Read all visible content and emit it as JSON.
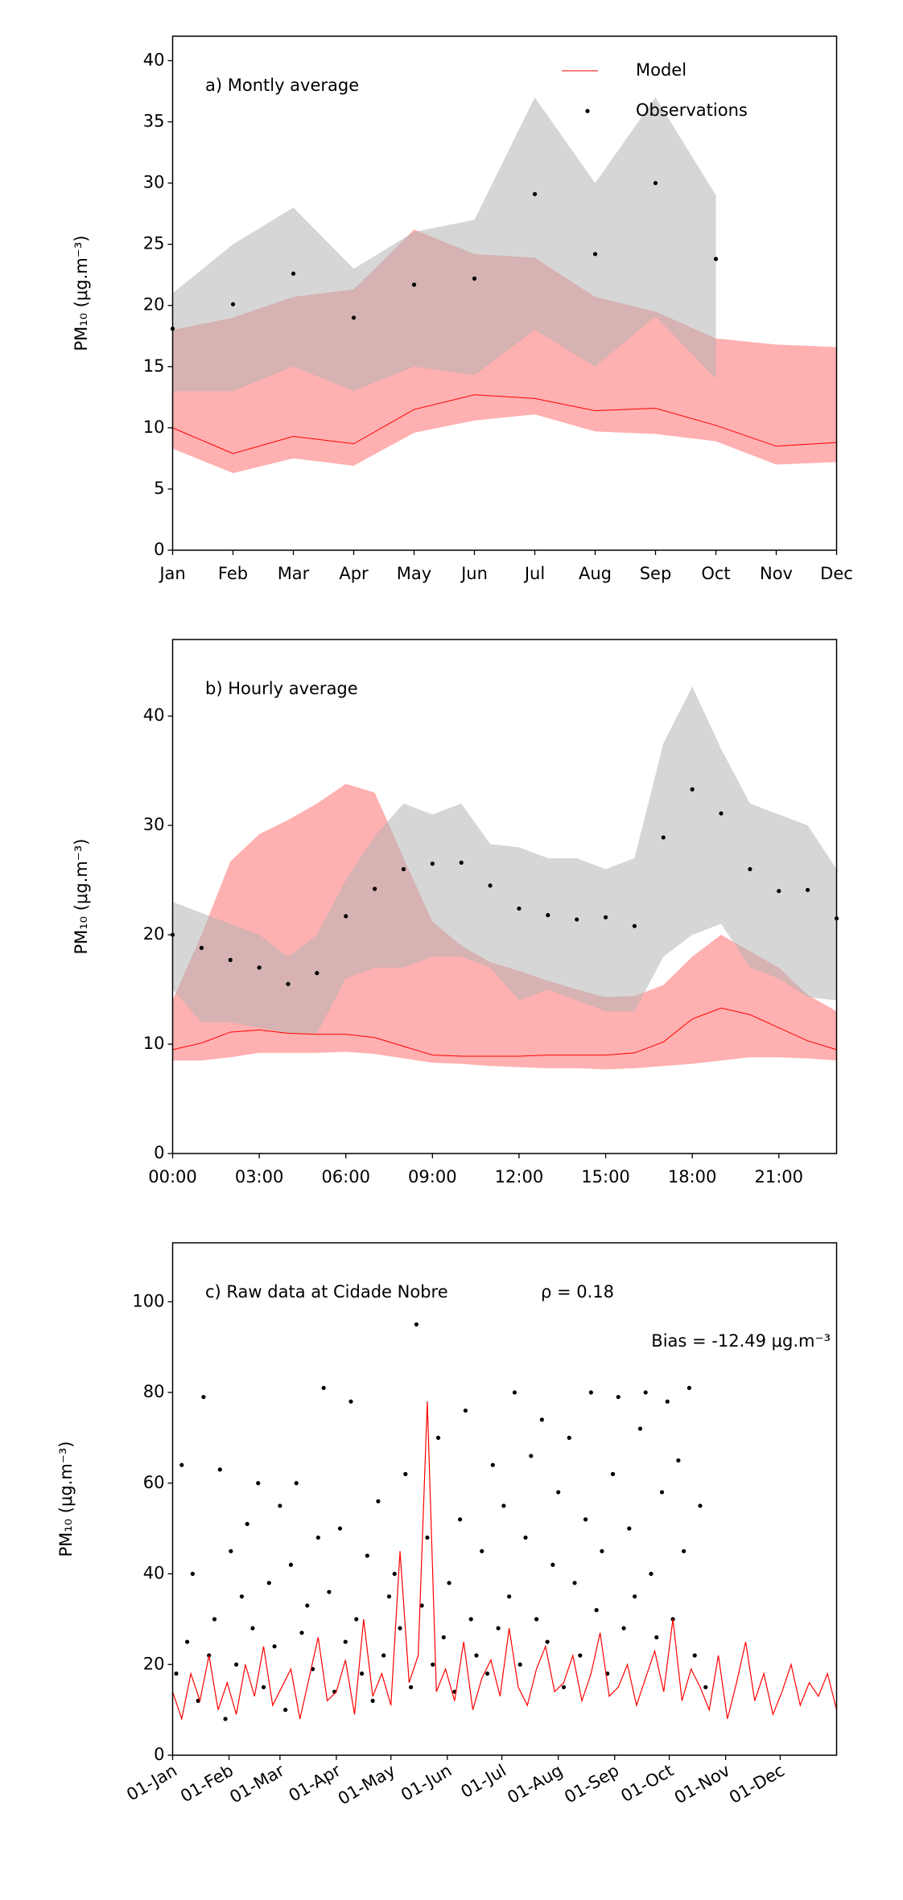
{
  "chart_data": [
    {
      "type": "line",
      "title": "a) Montly average",
      "ylabel": "PM₁₀ (μg.m⁻³)",
      "categories": [
        "Jan",
        "Feb",
        "Mar",
        "Apr",
        "May",
        "Jun",
        "Jul",
        "Aug",
        "Sep",
        "Oct",
        "Nov",
        "Dec"
      ],
      "ylim": [
        0,
        42
      ],
      "yticks": [
        0,
        5,
        10,
        15,
        20,
        25,
        30,
        35,
        40
      ],
      "legend": "upper right",
      "series": [
        {
          "name": "Model",
          "style": "line",
          "color": "#ff0000",
          "band_color": "#ff9c9c",
          "values": [
            10,
            7.9,
            9.3,
            8.7,
            11.5,
            12.7,
            12.4,
            11.4,
            11.6,
            10.2,
            8.5,
            8.8
          ],
          "band_lower": [
            8.3,
            6.3,
            7.5,
            6.9,
            9.6,
            10.6,
            11.1,
            9.7,
            9.5,
            8.9,
            7,
            7.2
          ],
          "band_upper": [
            18,
            19,
            20.7,
            21.3,
            26.2,
            24.2,
            23.9,
            20.7,
            19.5,
            17.3,
            16.8,
            16.6
          ]
        },
        {
          "name": "Observations",
          "style": "dots",
          "color": "#000000",
          "band_color": "#b4b4b4",
          "values": [
            18.1,
            20.1,
            22.6,
            19,
            21.7,
            22.2,
            29.1,
            24.2,
            30,
            23.8,
            null,
            null
          ],
          "band_lower": [
            13,
            13,
            15,
            13,
            15,
            14.3,
            18,
            15,
            19.1,
            14,
            null,
            null
          ],
          "band_upper": [
            21,
            25,
            28,
            23,
            26,
            27,
            37,
            30,
            37,
            29,
            null,
            null
          ]
        }
      ]
    },
    {
      "type": "line",
      "title": "b) Hourly average",
      "ylabel": "PM₁₀ (μg.m⁻³)",
      "x": [
        0,
        1,
        2,
        3,
        4,
        5,
        6,
        7,
        8,
        9,
        10,
        11,
        12,
        13,
        14,
        15,
        16,
        17,
        18,
        19,
        20,
        21,
        22,
        23
      ],
      "xlim": [
        0,
        23
      ],
      "xticks": [
        {
          "value": 0,
          "label": "00:00"
        },
        {
          "value": 3,
          "label": "03:00"
        },
        {
          "value": 6,
          "label": "06:00"
        },
        {
          "value": 9,
          "label": "09:00"
        },
        {
          "value": 12,
          "label": "12:00"
        },
        {
          "value": 15,
          "label": "15:00"
        },
        {
          "value": 18,
          "label": "18:00"
        },
        {
          "value": 21,
          "label": "21:00"
        }
      ],
      "ylim": [
        0,
        47
      ],
      "yticks": [
        0,
        10,
        20,
        30,
        40
      ],
      "series": [
        {
          "name": "Model",
          "style": "line",
          "color": "#ff0000",
          "band_color": "#ff9c9c",
          "values": [
            9.5,
            10.1,
            11.1,
            11.3,
            11,
            10.9,
            10.9,
            10.6,
            9.8,
            9,
            8.9,
            8.9,
            8.9,
            9,
            9,
            9,
            9.2,
            10.2,
            12.3,
            13.3,
            12.7,
            11.5,
            10.3,
            9.5
          ],
          "band_lower": [
            8.5,
            8.5,
            8.8,
            9.2,
            9.2,
            9.2,
            9.3,
            9.1,
            8.7,
            8.3,
            8.2,
            8,
            7.9,
            7.8,
            7.8,
            7.7,
            7.8,
            8,
            8.2,
            8.5,
            8.8,
            8.8,
            8.7,
            8.5
          ],
          "band_upper": [
            14,
            20,
            26.7,
            29.2,
            30.5,
            32,
            33.8,
            33,
            27,
            21.2,
            19,
            17.5,
            16.7,
            15.8,
            15,
            14.3,
            14.4,
            15.4,
            18,
            20,
            18.5,
            17,
            14.5,
            13
          ]
        },
        {
          "name": "Observations",
          "style": "dots",
          "color": "#000000",
          "band_color": "#b4b4b4",
          "values": [
            20,
            18.8,
            17.7,
            17,
            15.5,
            16.5,
            21.7,
            24.2,
            26,
            26.5,
            26.6,
            24.5,
            22.4,
            21.8,
            21.4,
            21.6,
            20.8,
            28.9,
            33.3,
            31.1,
            26,
            24,
            24.1,
            21.5
          ],
          "band_lower": [
            15,
            12,
            12,
            11.5,
            11,
            11,
            16,
            17,
            17,
            18,
            18,
            17,
            14,
            15,
            14,
            13,
            13,
            18,
            20,
            21,
            17,
            16,
            14.3,
            14
          ],
          "band_upper": [
            23,
            22,
            21,
            20,
            18,
            20,
            25,
            29,
            32,
            31,
            32,
            28.3,
            28,
            27,
            27,
            26,
            27,
            37.5,
            42.7,
            37,
            32,
            31,
            30,
            26
          ]
        }
      ]
    },
    {
      "type": "scatter",
      "title": "c) Raw data at Cidade Nobre",
      "ylabel": "PM₁₀ (μg.m⁻³)",
      "annotations": [
        "ρ = 0.18",
        "Bias = -12.49 μg.m⁻³"
      ],
      "xlim": [
        0,
        365
      ],
      "xticks": [
        {
          "value": 0,
          "label": "01-Jan"
        },
        {
          "value": 31,
          "label": "01-Feb"
        },
        {
          "value": 59,
          "label": "01-Mar"
        },
        {
          "value": 90,
          "label": "01-Apr"
        },
        {
          "value": 120,
          "label": "01-May"
        },
        {
          "value": 151,
          "label": "01-Jun"
        },
        {
          "value": 181,
          "label": "01-Jul"
        },
        {
          "value": 212,
          "label": "01-Aug"
        },
        {
          "value": 243,
          "label": "01-Sep"
        },
        {
          "value": 273,
          "label": "01-Oct"
        },
        {
          "value": 304,
          "label": "01-Nov"
        },
        {
          "value": 334,
          "label": "01-Dec"
        }
      ],
      "ylim": [
        0,
        113
      ],
      "yticks": [
        0,
        20,
        40,
        60,
        80,
        100
      ],
      "series": [
        {
          "name": "Observations",
          "style": "dots",
          "color": "#000000",
          "x": [
            2,
            5,
            8,
            11,
            14,
            17,
            20,
            23,
            26,
            29,
            32,
            35,
            38,
            41,
            44,
            47,
            50,
            53,
            56,
            59,
            62,
            65,
            68,
            71,
            74,
            77,
            80,
            83,
            86,
            89,
            92,
            95,
            98,
            101,
            104,
            107,
            110,
            113,
            116,
            119,
            122,
            125,
            128,
            131,
            134,
            137,
            140,
            143,
            146,
            149,
            152,
            155,
            158,
            161,
            164,
            167,
            170,
            173,
            176,
            179,
            182,
            185,
            188,
            191,
            194,
            197,
            200,
            203,
            206,
            209,
            212,
            215,
            218,
            221,
            224,
            227,
            230,
            233,
            236,
            239,
            242,
            245,
            248,
            251,
            254,
            257,
            260,
            263,
            266,
            269,
            272,
            275,
            278,
            281,
            284,
            287,
            290,
            293
          ],
          "values": [
            18,
            64,
            25,
            40,
            12,
            79,
            22,
            30,
            63,
            8,
            45,
            20,
            35,
            51,
            28,
            60,
            15,
            38,
            24,
            55,
            10,
            42,
            60,
            27,
            33,
            19,
            48,
            81,
            36,
            14,
            50,
            25,
            78,
            30,
            18,
            44,
            12,
            56,
            22,
            35,
            40,
            28,
            62,
            15,
            95,
            33,
            48,
            20,
            70,
            26,
            38,
            14,
            52,
            76,
            30,
            22,
            45,
            18,
            64,
            28,
            55,
            35,
            80,
            20,
            48,
            66,
            30,
            74,
            25,
            42,
            58,
            15,
            70,
            38,
            22,
            52,
            80,
            32,
            45,
            18,
            62,
            79,
            28,
            50,
            35,
            72,
            80,
            40,
            26,
            58,
            78,
            30,
            65,
            45,
            81,
            22,
            55,
            15
          ]
        },
        {
          "name": "Model",
          "style": "line",
          "color": "#ff0000",
          "x": [
            0,
            5,
            10,
            15,
            20,
            25,
            30,
            35,
            40,
            45,
            50,
            55,
            60,
            65,
            70,
            75,
            80,
            85,
            90,
            95,
            100,
            105,
            110,
            115,
            120,
            125,
            130,
            135,
            140,
            145,
            150,
            155,
            160,
            165,
            170,
            175,
            180,
            185,
            190,
            195,
            200,
            205,
            210,
            215,
            220,
            225,
            230,
            235,
            240,
            245,
            250,
            255,
            260,
            265,
            270,
            275,
            280,
            285,
            290,
            295,
            300,
            305,
            310,
            315,
            320,
            325,
            330,
            335,
            340,
            345,
            350,
            355,
            360,
            365
          ],
          "values": [
            14,
            8,
            18,
            12,
            22,
            10,
            16,
            9,
            20,
            13,
            24,
            11,
            15,
            19,
            8,
            17,
            26,
            12,
            14,
            21,
            9,
            30,
            13,
            18,
            11,
            45,
            16,
            22,
            78,
            14,
            19,
            12,
            25,
            10,
            17,
            21,
            13,
            28,
            15,
            11,
            19,
            24,
            14,
            16,
            22,
            12,
            18,
            27,
            13,
            15,
            20,
            11,
            17,
            23,
            14,
            30,
            12,
            19,
            15,
            10,
            22,
            8,
            16,
            25,
            12,
            18,
            9,
            14,
            20,
            11,
            16,
            13,
            18,
            10
          ]
        }
      ]
    }
  ]
}
